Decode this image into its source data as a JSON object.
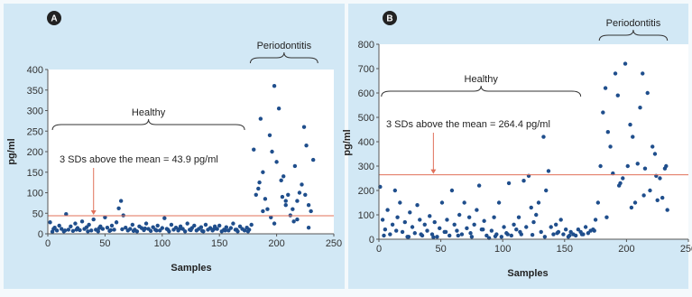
{
  "colors": {
    "point": "#1f4e8c",
    "threshold": "#e0705a",
    "arrow": "#e0705a",
    "panel_background": "#d2e8f5"
  },
  "chart_data": [
    {
      "type": "scatter",
      "panel_label": "A",
      "xlabel": "Samples",
      "ylabel": "pg/ml",
      "xlim": [
        0,
        250
      ],
      "ylim": [
        0,
        400
      ],
      "x_ticks": [
        "0",
        "50",
        "100",
        "150",
        "200",
        "250"
      ],
      "y_ticks": [
        "0",
        "50",
        "100",
        "150",
        "200",
        "250",
        "300",
        "350",
        "400"
      ],
      "threshold": 43.9,
      "threshold_label": "3 SDs above the mean = 43.9 pg/ml",
      "arrow_x": 40,
      "groups": [
        {
          "label": "Healthy",
          "x_range": [
            4,
            172
          ]
        },
        {
          "label": "Periodontitis",
          "x_range": [
            177,
            236
          ]
        }
      ],
      "series": [
        {
          "x": [
            2,
            4,
            6,
            8,
            10,
            12,
            14,
            16,
            18,
            20,
            22,
            24,
            26,
            28,
            30,
            32,
            34,
            36,
            38,
            40,
            42,
            44,
            46,
            48,
            50,
            52,
            54,
            56,
            58,
            60,
            62,
            64,
            66,
            68,
            70,
            72,
            74,
            76,
            78,
            80,
            82,
            84,
            86,
            88,
            90,
            92,
            94,
            96,
            98,
            100,
            102,
            104,
            106,
            108,
            110,
            112,
            114,
            116,
            118,
            120,
            122,
            124,
            126,
            128,
            130,
            132,
            134,
            136,
            138,
            140,
            142,
            144,
            146,
            148,
            150,
            152,
            154,
            156,
            158,
            160,
            162,
            164,
            166,
            168,
            170,
            172,
            174,
            176,
            178,
            180,
            182,
            184,
            186,
            188,
            190,
            192,
            194,
            196,
            198,
            200,
            202,
            204,
            206,
            208,
            210,
            212,
            214,
            216,
            218,
            220,
            222,
            224,
            226,
            228,
            230,
            232,
            5,
            15,
            25,
            35,
            45,
            55,
            65,
            75,
            85,
            95,
            105,
            115,
            125,
            135,
            145,
            155,
            165,
            175,
            185,
            195,
            205,
            215,
            225,
            188,
            198,
            208,
            218,
            228
          ],
          "y": [
            28,
            5,
            15,
            8,
            20,
            12,
            6,
            48,
            10,
            18,
            7,
            25,
            14,
            9,
            30,
            12,
            16,
            22,
            8,
            35,
            10,
            6,
            18,
            12,
            40,
            15,
            7,
            20,
            10,
            28,
            62,
            80,
            45,
            15,
            8,
            12,
            22,
            10,
            6,
            18,
            14,
            9,
            25,
            12,
            7,
            16,
            10,
            20,
            8,
            14,
            38,
            12,
            6,
            22,
            10,
            15,
            8,
            18,
            12,
            6,
            25,
            10,
            14,
            20,
            8,
            12,
            16,
            6,
            22,
            10,
            14,
            8,
            18,
            12,
            20,
            6,
            10,
            16,
            8,
            14,
            25,
            10,
            6,
            18,
            12,
            8,
            15,
            10,
            22,
            205,
            95,
            110,
            280,
            150,
            85,
            60,
            240,
            200,
            360,
            175,
            305,
            130,
            140,
            70,
            95,
            45,
            60,
            165,
            80,
            100,
            120,
            260,
            215,
            70,
            55,
            180,
            12,
            8,
            10,
            6,
            14,
            9,
            11,
            7,
            13,
            8,
            10,
            12,
            9,
            7,
            11,
            8,
            10,
            6,
            125,
            40,
            90,
            30,
            95,
            55,
            25,
            80,
            35,
            15
          ]
        }
      ]
    },
    {
      "type": "scatter",
      "panel_label": "B",
      "xlabel": "Samples",
      "ylabel": "pg/ml",
      "xlim": [
        0,
        250
      ],
      "ylim": [
        0,
        800
      ],
      "x_ticks": [
        "0",
        "50",
        "100",
        "150",
        "200",
        "250"
      ],
      "y_ticks": [
        "0",
        "100",
        "200",
        "300",
        "400",
        "500",
        "600",
        "700",
        "800"
      ],
      "threshold": 264.4,
      "threshold_label": "3 SDs above the mean = 264.4 pg/ml",
      "arrow_x": 44,
      "groups": [
        {
          "label": "Healthy",
          "x_range": [
            2,
            163
          ]
        },
        {
          "label": "Periodontitis",
          "x_range": [
            178,
            233
          ]
        }
      ],
      "series": [
        {
          "x": [
            1,
            3,
            5,
            7,
            9,
            11,
            13,
            15,
            17,
            19,
            21,
            23,
            25,
            27,
            29,
            31,
            33,
            35,
            37,
            39,
            41,
            43,
            45,
            47,
            49,
            51,
            53,
            55,
            57,
            59,
            61,
            63,
            65,
            67,
            69,
            71,
            73,
            75,
            77,
            79,
            81,
            83,
            85,
            87,
            89,
            91,
            93,
            95,
            97,
            99,
            101,
            103,
            105,
            107,
            109,
            111,
            113,
            115,
            117,
            119,
            121,
            123,
            125,
            127,
            129,
            131,
            133,
            135,
            137,
            139,
            141,
            143,
            145,
            147,
            149,
            151,
            153,
            155,
            157,
            159,
            161,
            163,
            165,
            167,
            169,
            171,
            173,
            175,
            177,
            179,
            181,
            183,
            185,
            187,
            189,
            191,
            193,
            195,
            197,
            199,
            201,
            203,
            205,
            207,
            209,
            211,
            213,
            215,
            217,
            219,
            221,
            223,
            225,
            227,
            229,
            231,
            233,
            4,
            14,
            24,
            34,
            44,
            54,
            64,
            74,
            84,
            94,
            104,
            114,
            124,
            134,
            144,
            154,
            164,
            174,
            184,
            194,
            204,
            214,
            224,
            232
          ],
          "y": [
            215,
            80,
            40,
            120,
            20,
            60,
            200,
            90,
            150,
            30,
            70,
            10,
            110,
            50,
            25,
            140,
            80,
            15,
            60,
            35,
            95,
            20,
            70,
            10,
            45,
            150,
            30,
            80,
            15,
            200,
            60,
            35,
            100,
            20,
            150,
            45,
            90,
            10,
            60,
            120,
            220,
            40,
            75,
            15,
            5,
            35,
            90,
            20,
            150,
            10,
            50,
            25,
            230,
            15,
            60,
            40,
            90,
            20,
            240,
            50,
            260,
            130,
            70,
            100,
            150,
            30,
            420,
            200,
            280,
            50,
            20,
            60,
            30,
            80,
            20,
            40,
            10,
            30,
            20,
            15,
            40,
            30,
            20,
            50,
            25,
            35,
            40,
            80,
            150,
            300,
            520,
            620,
            440,
            380,
            270,
            680,
            590,
            230,
            250,
            720,
            300,
            470,
            420,
            150,
            310,
            540,
            680,
            290,
            600,
            200,
            380,
            350,
            160,
            250,
            170,
            290,
            120,
            15,
            35,
            10,
            20,
            8,
            30,
            15,
            25,
            40,
            12,
            20,
            30,
            18,
            10,
            25,
            15,
            20,
            35,
            90,
            220,
            130,
            180,
            260,
            300
          ]
        }
      ]
    }
  ]
}
